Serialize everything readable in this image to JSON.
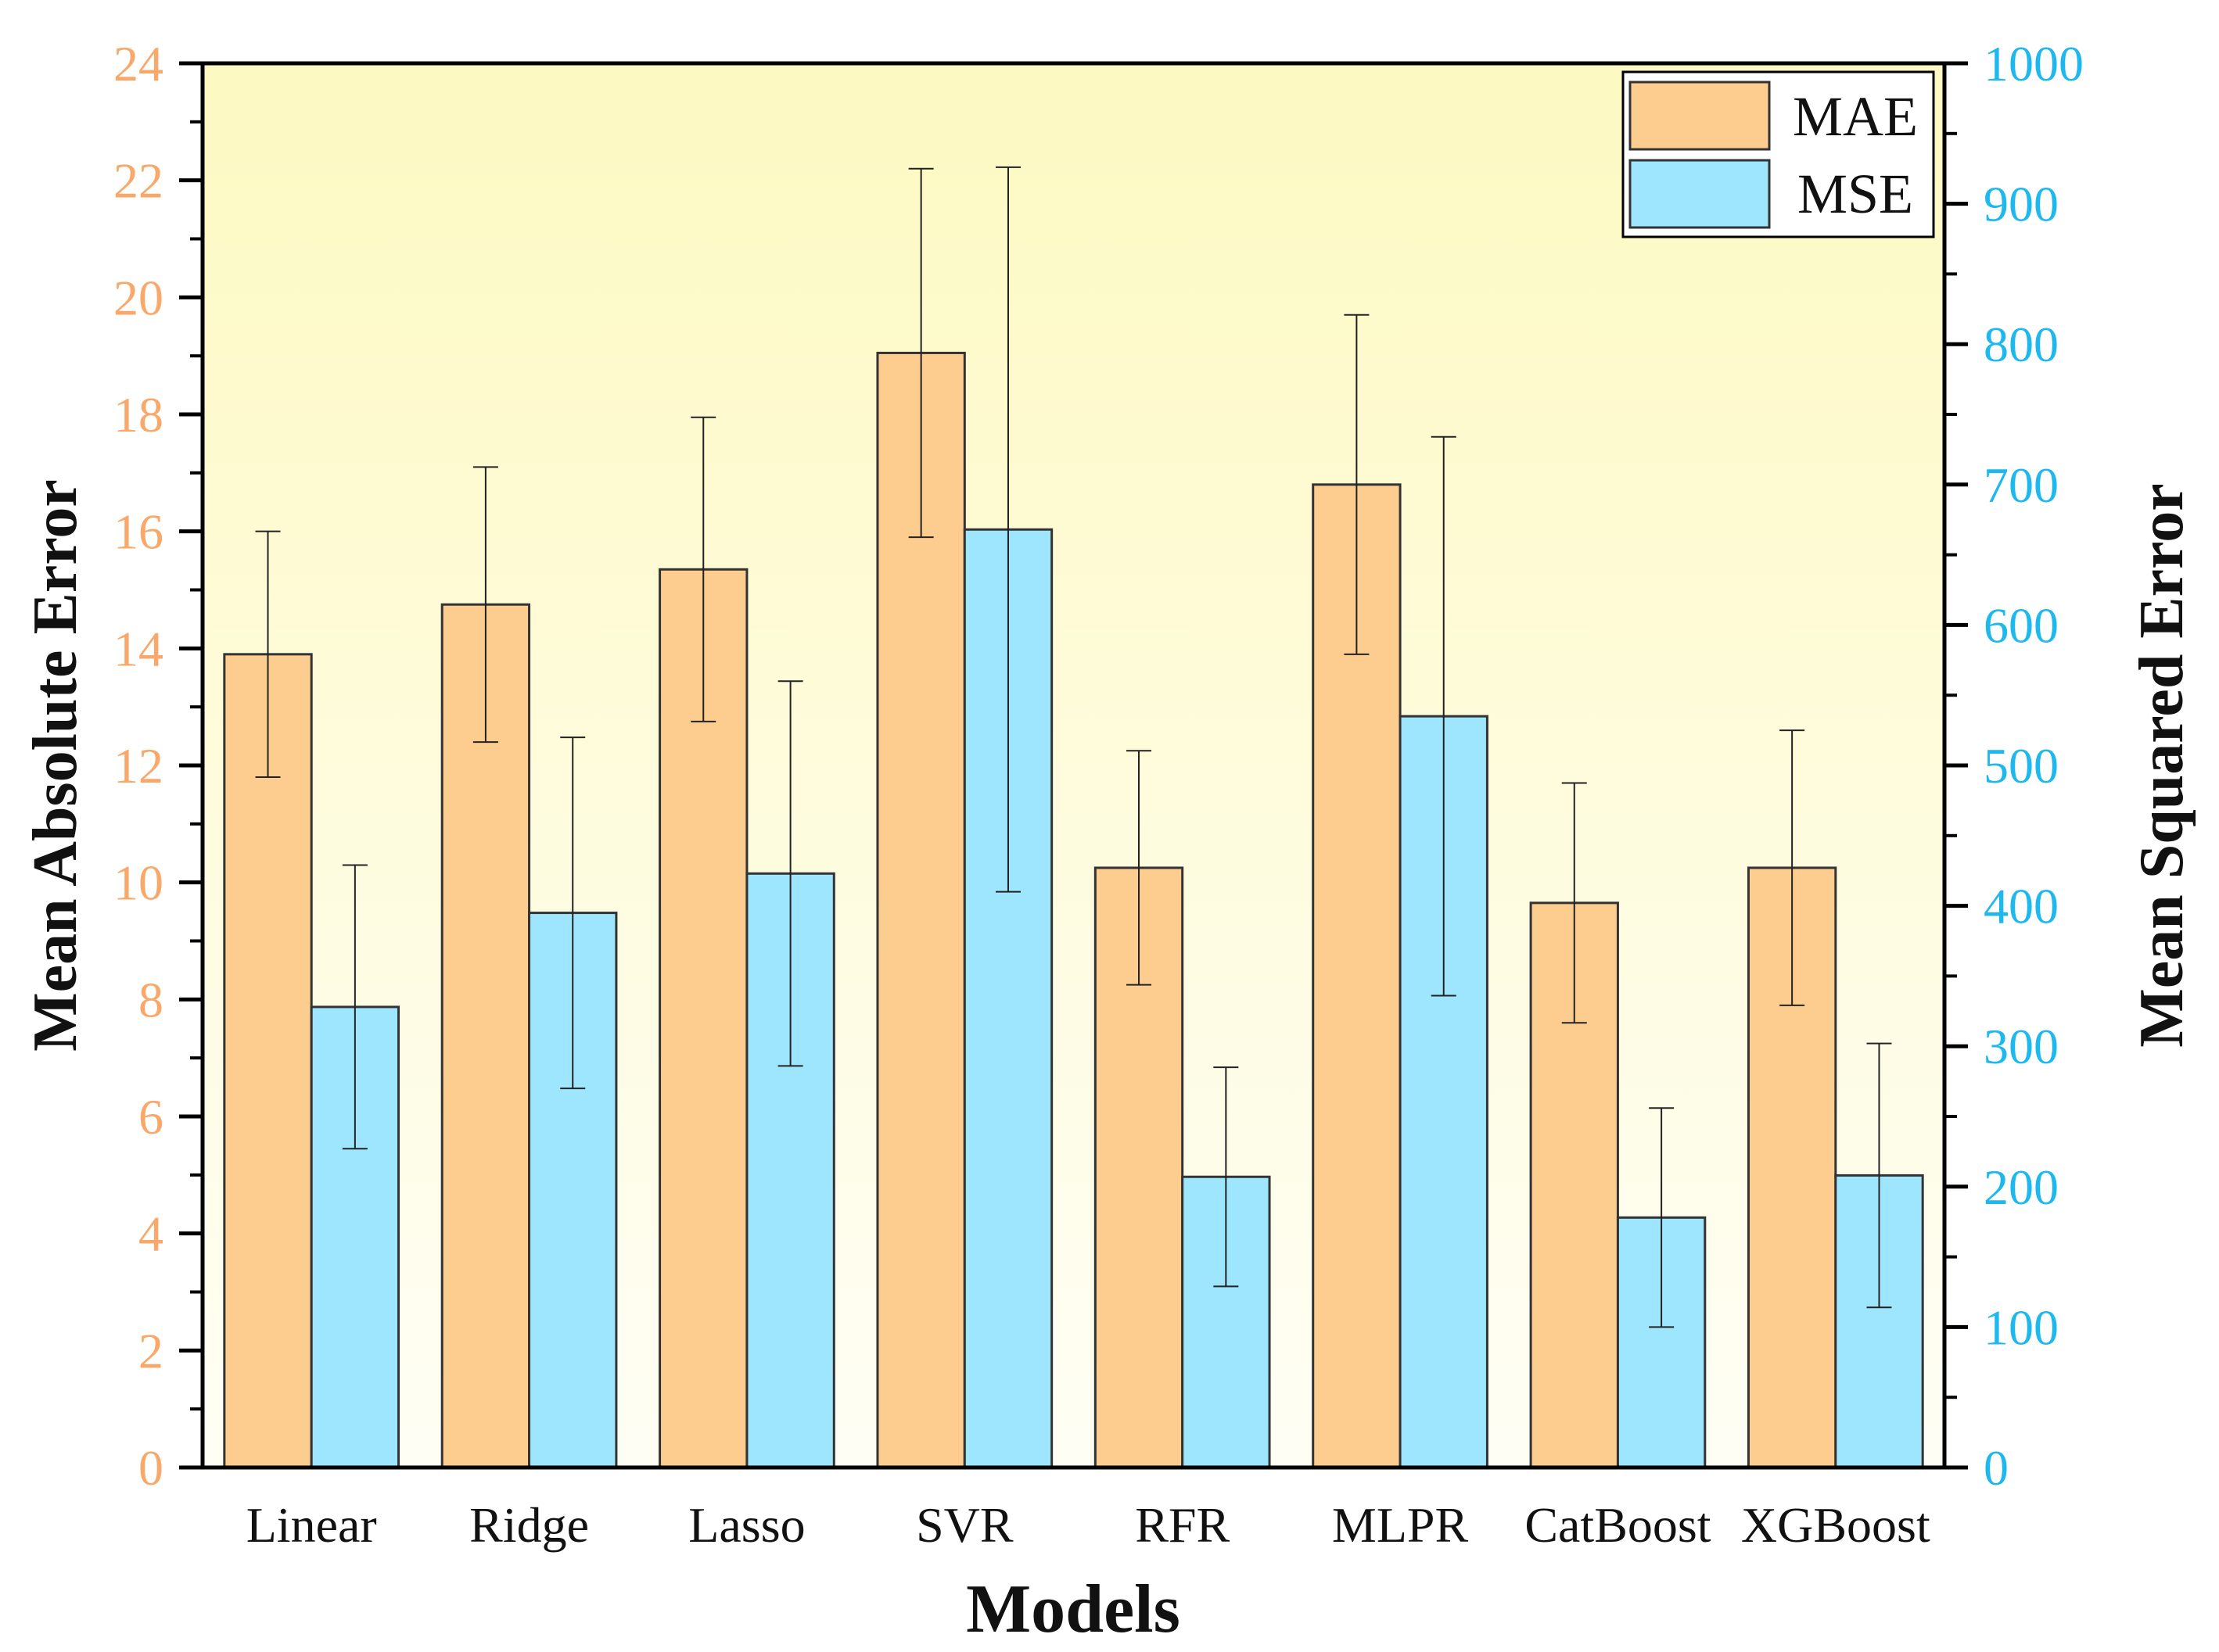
{
  "chart_data": {
    "type": "bar",
    "title": "",
    "xlabel": "Models",
    "ylabel_left": "Mean Absolute Error",
    "ylabel_right": "Mean Squared Error",
    "categories": [
      "Linear",
      "Ridge",
      "Lasso",
      "SVR",
      "RFR",
      "MLPR",
      "CatBoost",
      "XGBoost"
    ],
    "ylim_left": [
      0,
      24
    ],
    "ylim_right": [
      0,
      1000
    ],
    "yticks_left": [
      0,
      2,
      4,
      6,
      8,
      10,
      12,
      14,
      16,
      18,
      20,
      22,
      24
    ],
    "yticks_right": [
      0,
      100,
      200,
      300,
      400,
      500,
      600,
      700,
      800,
      900,
      1000
    ],
    "grid": false,
    "legend_position": "top-right",
    "series": [
      {
        "name": "MAE",
        "axis": "left",
        "color": "#fdcd8f",
        "values": [
          13.9,
          14.75,
          15.35,
          19.05,
          10.25,
          16.8,
          9.65,
          10.25
        ],
        "errors": [
          2.1,
          2.35,
          2.6,
          3.15,
          2.0,
          2.9,
          2.05,
          2.35
        ]
      },
      {
        "name": "MSE",
        "axis": "right",
        "color": "#9ee6fe",
        "values": [
          328,
          395,
          423,
          668,
          207,
          535,
          178,
          208
        ],
        "errors": [
          101,
          125,
          137,
          258,
          78,
          199,
          78,
          94
        ]
      }
    ],
    "colors": {
      "left_axis": "#f9a86a",
      "right_axis": "#1cb8ee",
      "background_top": "#fdf9c2",
      "background_bottom": "#fffef5"
    }
  }
}
